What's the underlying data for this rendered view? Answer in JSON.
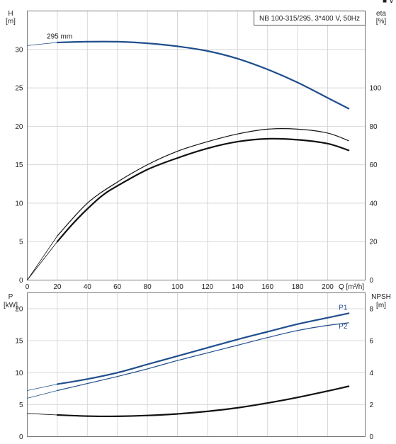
{
  "top_right_glyph": "■ ∨",
  "chart_data": [
    {
      "type": "line",
      "title": "NB 100-315/295, 3*400 V, 50Hz",
      "xlabel": "Q [m³/h]",
      "xlim": [
        0,
        225
      ],
      "xticks": [
        0,
        20,
        40,
        60,
        80,
        100,
        120,
        140,
        160,
        180,
        200
      ],
      "y_left": {
        "label_line1": "H",
        "label_line2": "[m]",
        "lim": [
          0,
          35
        ],
        "ticks": [
          0,
          5,
          10,
          15,
          20,
          25,
          30
        ]
      },
      "y_right": {
        "label_line1": "eta",
        "label_line2": "[%]",
        "lim": [
          0,
          140
        ],
        "ticks": [
          0,
          20,
          40,
          60,
          80,
          100
        ]
      },
      "grid": true,
      "series": [
        {
          "name": "295 mm",
          "axis": "left",
          "color": "#1f4e8c",
          "width": 2.2,
          "x": [
            0,
            20,
            40,
            60,
            80,
            100,
            120,
            140,
            160,
            180,
            200,
            214
          ],
          "y": [
            30.5,
            30.9,
            31.0,
            31.0,
            30.8,
            30.4,
            29.8,
            28.8,
            27.4,
            25.7,
            23.7,
            22.3
          ],
          "extrapolated_x": [
            0,
            20
          ]
        },
        {
          "axis": "right",
          "color": "#111111",
          "width": 1.2,
          "x": [
            0,
            20,
            40,
            60,
            80,
            100,
            120,
            140,
            160,
            180,
            200,
            214
          ],
          "y": [
            0,
            23,
            40,
            51,
            60,
            67,
            72,
            76,
            78.5,
            78.5,
            76.5,
            72.5
          ],
          "extrapolated_x": [
            0,
            20
          ]
        },
        {
          "axis": "right",
          "color": "#111111",
          "width": 2.2,
          "x": [
            20,
            30,
            40,
            50,
            60,
            80,
            100,
            120,
            140,
            160,
            180,
            200,
            214
          ],
          "y": [
            20,
            29,
            37,
            44,
            49,
            57.5,
            63.5,
            68.5,
            72,
            73.5,
            73,
            71,
            67.5
          ],
          "extrapolated_x": [
            0,
            20
          ],
          "extrap_y": [
            0,
            20
          ]
        }
      ]
    },
    {
      "type": "line",
      "xlim": [
        0,
        225
      ],
      "xticks": [
        0,
        20,
        40,
        60,
        80,
        100,
        120,
        140,
        160,
        180,
        200
      ],
      "y_left": {
        "label_line1": "P",
        "label_line2": "[kW]",
        "lim": [
          0,
          22.5
        ],
        "ticks": [
          0,
          5,
          10,
          15,
          20
        ]
      },
      "y_right": {
        "label_line1": "NPSH",
        "label_line2": "[m]",
        "lim": [
          0,
          9
        ],
        "ticks": [
          0,
          2,
          4,
          6,
          8
        ]
      },
      "grid": true,
      "series": [
        {
          "name": "P1",
          "axis": "left",
          "color": "#1f4e8c",
          "width": 2.2,
          "x": [
            0,
            20,
            40,
            60,
            80,
            100,
            120,
            140,
            160,
            180,
            200,
            214
          ],
          "y": [
            7.2,
            8.2,
            9.0,
            10.0,
            11.3,
            12.6,
            13.9,
            15.2,
            16.4,
            17.6,
            18.6,
            19.3
          ],
          "extrapolated_x": [
            0,
            20
          ]
        },
        {
          "name": "P2",
          "axis": "left",
          "color": "#1f4e8c",
          "width": 1.2,
          "x": [
            0,
            20,
            40,
            60,
            80,
            100,
            120,
            140,
            160,
            180,
            200,
            214
          ],
          "y": [
            6.0,
            7.2,
            8.3,
            9.4,
            10.6,
            11.9,
            13.1,
            14.3,
            15.5,
            16.6,
            17.4,
            17.8
          ],
          "extrapolated_x": [
            0,
            20
          ]
        },
        {
          "axis": "right",
          "color": "#111111",
          "width": 2.2,
          "x": [
            0,
            20,
            40,
            60,
            80,
            100,
            120,
            140,
            160,
            180,
            200,
            214
          ],
          "y": [
            1.45,
            1.35,
            1.28,
            1.27,
            1.32,
            1.42,
            1.58,
            1.8,
            2.1,
            2.45,
            2.85,
            3.15
          ],
          "extrapolated_x": [
            0,
            20
          ]
        }
      ]
    }
  ]
}
